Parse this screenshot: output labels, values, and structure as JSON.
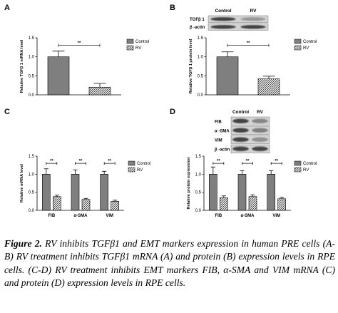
{
  "colors": {
    "control": "#7f7f7f",
    "rv_fill": "#ffffff",
    "rv_hatch": "#000000",
    "blot_bg": "#d4d4d4",
    "band_dark": "#2a2a2a"
  },
  "blots": {
    "B": {
      "lanes": [
        "Control",
        "RV"
      ],
      "rows": [
        "TGFβ 1",
        "β -actin"
      ],
      "intensity": [
        [
          0.85,
          0.35
        ],
        [
          0.85,
          0.85
        ]
      ]
    },
    "D": {
      "lanes": [
        "Control",
        "RV"
      ],
      "rows": [
        "FIB",
        "α -SMA",
        "VIM",
        "β -actin"
      ],
      "intensity": [
        [
          0.85,
          0.45
        ],
        [
          0.85,
          0.5
        ],
        [
          0.85,
          0.4
        ],
        [
          0.85,
          0.85
        ]
      ]
    }
  },
  "caption": {
    "label": "Figure 2.",
    "text": " RV inhibits TGFβ1 and EMT markers expression in human PRE cells (A-B) RV treatment inhibits TGFβ1 mRNA (A) and protein (B) expression levels in RPE cells. (C-D) RV treatment inhibits EMT markers FIB, α-SMA and VIM mRNA (C) and protein (D) expression levels in RPE cells."
  },
  "chart_data": [
    {
      "panel": "A",
      "type": "bar",
      "categories": [
        ""
      ],
      "series": [
        {
          "name": "Control",
          "values": [
            1.0
          ],
          "errors": [
            0.15
          ]
        },
        {
          "name": "RV",
          "values": [
            0.2
          ],
          "errors": [
            0.1
          ]
        }
      ],
      "ylabel": "Relative TGFβ 1 mRNA level",
      "ylim": [
        0,
        1.5
      ],
      "yticks": [
        "0.0",
        "0.5",
        "1.0",
        "1.5"
      ],
      "significance": [
        "**"
      ],
      "legend": "top-right"
    },
    {
      "panel": "B",
      "type": "bar",
      "categories": [
        ""
      ],
      "series": [
        {
          "name": "Control",
          "values": [
            1.0
          ],
          "errors": [
            0.13
          ]
        },
        {
          "name": "RV",
          "values": [
            0.42
          ],
          "errors": [
            0.07
          ]
        }
      ],
      "ylabel": "Relative TGFβ 1 protein level",
      "ylim": [
        0,
        1.5
      ],
      "yticks": [
        "0.0",
        "0.5",
        "1.0",
        "1.5"
      ],
      "significance": [
        "**"
      ],
      "legend": "top-right"
    },
    {
      "panel": "C",
      "type": "bar",
      "categories": [
        "FIB",
        "α-SMA",
        "VIM"
      ],
      "series": [
        {
          "name": "Control",
          "values": [
            1.0,
            1.0,
            1.0
          ],
          "errors": [
            0.15,
            0.12,
            0.08
          ]
        },
        {
          "name": "RV",
          "values": [
            0.38,
            0.3,
            0.25
          ],
          "errors": [
            0.04,
            0.03,
            0.03
          ]
        }
      ],
      "ylabel": "Relative mRNA level",
      "ylim": [
        0,
        1.5
      ],
      "yticks": [
        "0.0",
        "0.5",
        "1.0",
        "1.5"
      ],
      "significance": [
        "**",
        "**",
        "**"
      ],
      "legend": "top-right"
    },
    {
      "panel": "D",
      "type": "bar",
      "categories": [
        "FIB",
        "α-SMA",
        "VIM"
      ],
      "series": [
        {
          "name": "Control",
          "values": [
            1.0,
            1.0,
            1.0
          ],
          "errors": [
            0.2,
            0.1,
            0.1
          ]
        },
        {
          "name": "RV",
          "values": [
            0.35,
            0.38,
            0.32
          ],
          "errors": [
            0.05,
            0.05,
            0.04
          ]
        }
      ],
      "ylabel": "Relative protein expression",
      "ylim": [
        0,
        1.5
      ],
      "yticks": [
        "0.0",
        "0.5",
        "1.0",
        "1.5"
      ],
      "significance": [
        "**",
        "**",
        "**"
      ],
      "legend": "top-right"
    }
  ]
}
